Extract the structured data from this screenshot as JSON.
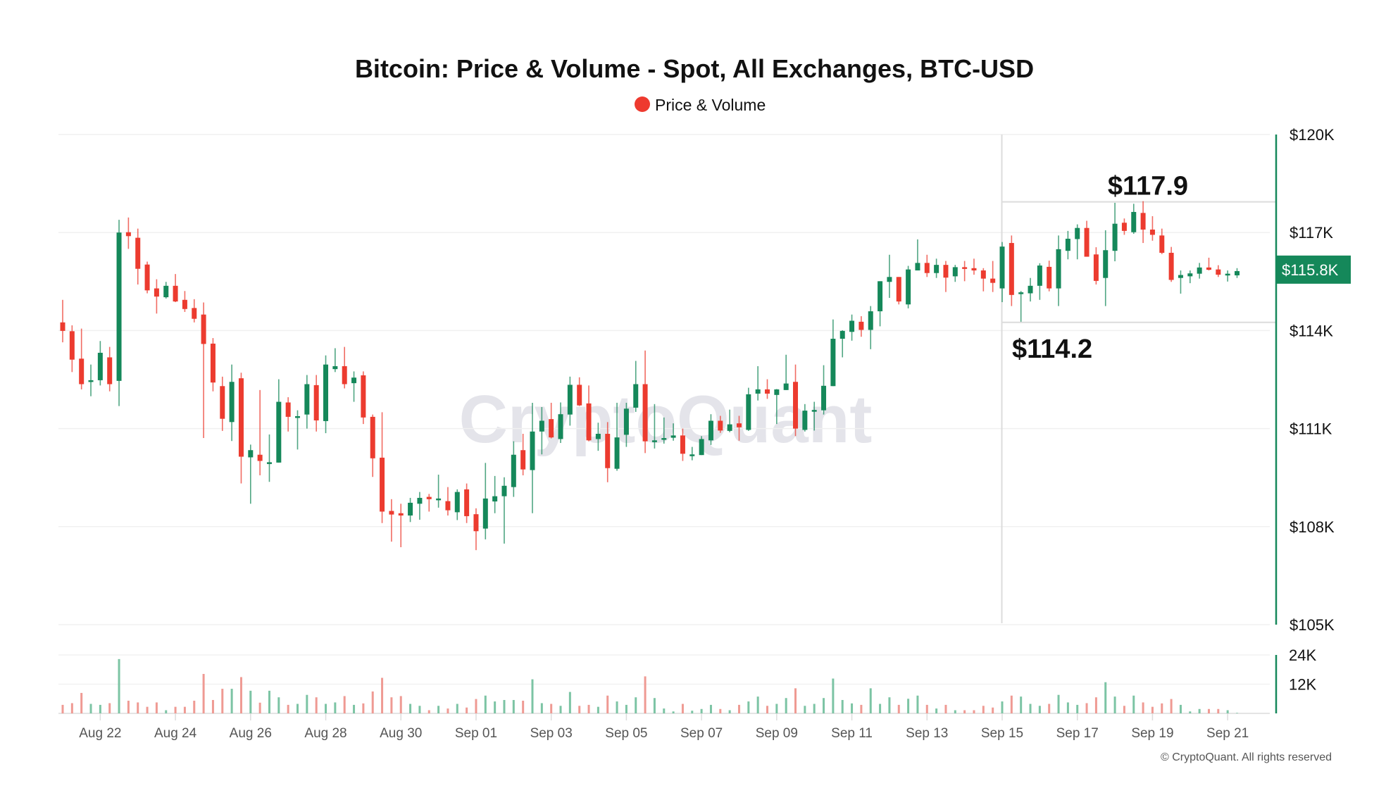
{
  "chart_data": {
    "type": "candlestick",
    "title": "Bitcoin: Price & Volume - Spot, All Exchanges, BTC-USD",
    "legend": [
      {
        "name": "Price & Volume",
        "color": "#ee3a2f"
      }
    ],
    "legend_position": "top-center",
    "colors": {
      "up": "#15885a",
      "down": "#ec3b2f",
      "up_volume": "#7cc4a4",
      "down_volume": "#ef9a93",
      "axis": "#15885a"
    },
    "price_axis": {
      "ylim": [
        105,
        120
      ],
      "ticks": [
        120,
        117,
        114,
        111,
        108,
        105
      ],
      "tick_labels": [
        "$120K",
        "$117K",
        "$114K",
        "$111K",
        "$108K",
        "$105K"
      ],
      "position": "right",
      "grid": true
    },
    "volume_axis": {
      "ylim": [
        0,
        24
      ],
      "ticks": [
        24,
        12
      ],
      "tick_labels": [
        "24K",
        "12K"
      ],
      "position": "right",
      "grid": true
    },
    "x_tick_labels": [
      "Aug 22",
      "Aug 24",
      "Aug 26",
      "Aug 28",
      "Aug 30",
      "Sep 01",
      "Sep 03",
      "Sep 05",
      "Sep 07",
      "Sep 09",
      "Sep 11",
      "Sep 13",
      "Sep 15",
      "Sep 17",
      "Sep 19",
      "Sep 21"
    ],
    "ohlc_fields": [
      "open",
      "high",
      "low",
      "close"
    ],
    "candles": [
      [
        114.25,
        114.94,
        113.64,
        113.99
      ],
      [
        113.98,
        114.16,
        112.73,
        113.11
      ],
      [
        113.14,
        114.06,
        112.2,
        112.36
      ],
      [
        112.45,
        112.96,
        111.99,
        112.48
      ],
      [
        112.48,
        113.68,
        112.32,
        113.32
      ],
      [
        113.18,
        113.5,
        112.14,
        112.36
      ],
      [
        112.46,
        117.39,
        111.69,
        117.0
      ],
      [
        117.01,
        117.46,
        116.5,
        116.89
      ],
      [
        116.84,
        117.12,
        115.41,
        115.89
      ],
      [
        116.02,
        116.11,
        115.14,
        115.23
      ],
      [
        115.29,
        115.57,
        114.52,
        115.04
      ],
      [
        115.02,
        115.49,
        114.98,
        115.37
      ],
      [
        115.37,
        115.73,
        114.87,
        114.89
      ],
      [
        114.94,
        115.21,
        114.57,
        114.66
      ],
      [
        114.69,
        114.96,
        114.25,
        114.36
      ],
      [
        114.49,
        114.86,
        110.71,
        113.59
      ],
      [
        113.6,
        113.77,
        112.14,
        112.41
      ],
      [
        112.3,
        112.59,
        110.93,
        111.3
      ],
      [
        111.2,
        112.96,
        110.62,
        112.43
      ],
      [
        112.54,
        112.71,
        109.32,
        110.14
      ],
      [
        110.12,
        110.51,
        108.7,
        110.34
      ],
      [
        110.2,
        112.18,
        109.57,
        110.01
      ],
      [
        109.94,
        110.82,
        109.37,
        109.97
      ],
      [
        109.96,
        112.51,
        109.96,
        111.82
      ],
      [
        111.8,
        111.96,
        110.91,
        111.36
      ],
      [
        111.36,
        111.56,
        110.36,
        111.38
      ],
      [
        111.43,
        112.64,
        111.0,
        112.36
      ],
      [
        112.33,
        112.64,
        110.91,
        111.25
      ],
      [
        111.23,
        113.24,
        110.86,
        112.96
      ],
      [
        112.82,
        113.46,
        112.73,
        112.91
      ],
      [
        112.91,
        113.5,
        112.23,
        112.36
      ],
      [
        112.39,
        112.75,
        111.82,
        112.56
      ],
      [
        112.63,
        112.75,
        111.14,
        111.34
      ],
      [
        111.36,
        111.43,
        109.52,
        110.09
      ],
      [
        110.11,
        111.5,
        108.11,
        108.46
      ],
      [
        108.48,
        108.84,
        107.54,
        108.37
      ],
      [
        108.41,
        108.7,
        107.37,
        108.34
      ],
      [
        108.34,
        108.88,
        108.14,
        108.73
      ],
      [
        108.7,
        109.06,
        108.21,
        108.88
      ],
      [
        108.91,
        109.0,
        108.46,
        108.84
      ],
      [
        108.83,
        109.59,
        108.58,
        108.86
      ],
      [
        108.78,
        109.21,
        108.34,
        108.5
      ],
      [
        108.44,
        109.14,
        108.2,
        109.06
      ],
      [
        109.14,
        109.32,
        108.11,
        108.32
      ],
      [
        108.38,
        108.56,
        107.28,
        107.86
      ],
      [
        107.94,
        109.95,
        107.61,
        108.86
      ],
      [
        108.77,
        109.55,
        108.41,
        108.93
      ],
      [
        108.93,
        109.51,
        107.48,
        109.25
      ],
      [
        109.21,
        110.61,
        108.91,
        110.2
      ],
      [
        110.34,
        110.84,
        109.57,
        109.75
      ],
      [
        109.73,
        111.79,
        108.41,
        110.91
      ],
      [
        110.91,
        111.66,
        110.21,
        111.24
      ],
      [
        111.29,
        111.79,
        110.7,
        110.73
      ],
      [
        110.68,
        111.8,
        110.56,
        111.44
      ],
      [
        111.43,
        112.59,
        111.09,
        112.34
      ],
      [
        112.34,
        112.57,
        111.69,
        111.71
      ],
      [
        111.77,
        112.32,
        110.61,
        110.64
      ],
      [
        110.68,
        111.18,
        110.32,
        110.84
      ],
      [
        110.84,
        111.2,
        109.36,
        109.79
      ],
      [
        109.77,
        111.79,
        109.71,
        110.73
      ],
      [
        110.81,
        111.79,
        110.44,
        111.61
      ],
      [
        111.64,
        113.07,
        111.51,
        112.36
      ],
      [
        112.36,
        113.39,
        110.25,
        110.61
      ],
      [
        110.61,
        111.75,
        110.39,
        110.64
      ],
      [
        110.66,
        111.34,
        110.54,
        110.71
      ],
      [
        110.72,
        111.16,
        110.63,
        110.79
      ],
      [
        110.79,
        111.0,
        110.01,
        110.23
      ],
      [
        110.18,
        110.44,
        110.03,
        110.21
      ],
      [
        110.19,
        110.77,
        110.19,
        110.68
      ],
      [
        110.64,
        111.44,
        110.5,
        111.24
      ],
      [
        111.24,
        111.39,
        110.87,
        110.94
      ],
      [
        110.93,
        111.58,
        110.89,
        111.13
      ],
      [
        111.16,
        111.39,
        110.63,
        111.04
      ],
      [
        110.96,
        112.25,
        110.93,
        112.05
      ],
      [
        112.07,
        112.91,
        111.86,
        112.2
      ],
      [
        112.2,
        112.51,
        111.91,
        112.07
      ],
      [
        112.03,
        112.21,
        111.14,
        112.2
      ],
      [
        112.18,
        113.26,
        112.18,
        112.38
      ],
      [
        112.43,
        112.96,
        110.77,
        111.0
      ],
      [
        110.96,
        111.75,
        110.91,
        111.55
      ],
      [
        111.53,
        111.82,
        110.94,
        111.57
      ],
      [
        111.56,
        112.94,
        111.43,
        112.31
      ],
      [
        112.3,
        114.34,
        112.3,
        113.75
      ],
      [
        113.75,
        114.01,
        113.18,
        113.99
      ],
      [
        113.96,
        114.49,
        113.69,
        114.3
      ],
      [
        114.27,
        114.44,
        113.81,
        114.02
      ],
      [
        114.02,
        114.75,
        113.43,
        114.59
      ],
      [
        114.59,
        115.51,
        114.13,
        115.51
      ],
      [
        115.49,
        116.32,
        115.0,
        115.64
      ],
      [
        115.64,
        115.64,
        114.8,
        114.89
      ],
      [
        114.8,
        115.98,
        114.68,
        115.87
      ],
      [
        115.84,
        116.79,
        115.84,
        116.07
      ],
      [
        116.07,
        116.32,
        115.64,
        115.76
      ],
      [
        115.76,
        116.2,
        115.61,
        116.01
      ],
      [
        116.01,
        116.13,
        115.18,
        115.62
      ],
      [
        115.66,
        116.01,
        115.49,
        115.94
      ],
      [
        115.94,
        116.13,
        115.51,
        115.91
      ],
      [
        115.91,
        116.2,
        115.71,
        115.84
      ],
      [
        115.84,
        115.91,
        115.2,
        115.59
      ],
      [
        115.59,
        116.13,
        115.18,
        115.46
      ],
      [
        115.29,
        116.71,
        114.87,
        116.57
      ],
      [
        116.68,
        116.91,
        114.75,
        115.09
      ],
      [
        115.14,
        115.21,
        114.27,
        115.17
      ],
      [
        115.14,
        115.61,
        114.89,
        115.37
      ],
      [
        115.37,
        116.06,
        114.94,
        115.99
      ],
      [
        115.95,
        116.14,
        115.2,
        115.29
      ],
      [
        115.29,
        116.91,
        114.75,
        116.49
      ],
      [
        116.44,
        117.05,
        116.18,
        116.81
      ],
      [
        116.8,
        117.25,
        116.18,
        117.14
      ],
      [
        117.14,
        117.36,
        116.26,
        116.26
      ],
      [
        116.33,
        116.55,
        115.41,
        115.52
      ],
      [
        115.61,
        117.07,
        114.75,
        116.46
      ],
      [
        116.44,
        117.91,
        116.12,
        117.27
      ],
      [
        117.3,
        117.43,
        116.93,
        117.05
      ],
      [
        117.01,
        117.88,
        116.96,
        117.63
      ],
      [
        117.6,
        117.96,
        116.68,
        117.09
      ],
      [
        117.09,
        117.5,
        116.75,
        116.93
      ],
      [
        116.91,
        117.12,
        116.34,
        116.38
      ],
      [
        116.38,
        116.56,
        115.49,
        115.55
      ],
      [
        115.61,
        115.84,
        115.13,
        115.7
      ],
      [
        115.66,
        115.84,
        115.45,
        115.75
      ],
      [
        115.74,
        116.07,
        115.59,
        115.93
      ],
      [
        115.93,
        116.23,
        115.84,
        115.86
      ],
      [
        115.87,
        116.0,
        115.64,
        115.71
      ],
      [
        115.72,
        115.84,
        115.5,
        115.74
      ],
      [
        115.69,
        115.91,
        115.61,
        115.82
      ]
    ],
    "volumes": [
      3.5,
      4.2,
      8.4,
      3.9,
      3.5,
      4.2,
      22.3,
      5.2,
      4.5,
      2.7,
      4.5,
      1.3,
      2.7,
      2.7,
      5.2,
      16.2,
      5.5,
      10.1,
      10.1,
      14.9,
      9.3,
      4.4,
      9.3,
      6.6,
      3.5,
      3.9,
      7.6,
      6.6,
      3.9,
      4.5,
      7.1,
      3.5,
      4.1,
      9.0,
      14.6,
      6.6,
      7.1,
      3.9,
      3.1,
      1.3,
      3.1,
      2.0,
      3.9,
      2.4,
      5.9,
      7.3,
      4.9,
      5.5,
      5.5,
      5.2,
      14.0,
      4.2,
      3.9,
      3.1,
      8.8,
      3.1,
      3.5,
      2.7,
      7.3,
      4.9,
      3.5,
      6.6,
      15.2,
      6.3,
      2.0,
      0.8,
      3.9,
      1.1,
      1.8,
      3.5,
      1.8,
      1.3,
      3.5,
      4.9,
      6.9,
      3.1,
      3.9,
      6.3,
      10.3,
      3.1,
      3.9,
      6.3,
      14.3,
      5.5,
      4.1,
      3.5,
      10.3,
      3.9,
      6.6,
      3.5,
      6.0,
      7.3,
      3.5,
      2.0,
      3.5,
      1.3,
      1.3,
      1.3,
      3.1,
      2.4,
      4.9,
      7.3,
      6.9,
      3.9,
      3.1,
      3.9,
      7.6,
      4.5,
      3.5,
      4.2,
      6.6,
      12.8,
      6.9,
      3.1,
      7.3,
      4.5,
      2.7,
      4.1,
      5.9,
      3.5,
      0.8,
      1.8,
      1.8,
      1.8,
      1.3,
      0.2
    ],
    "current_price": {
      "value": 115.8,
      "label": "$115.8K"
    },
    "annotations": [
      {
        "label": "$117.9",
        "value": 117.94
      },
      {
        "label": "$114.2",
        "value": 114.25
      }
    ]
  },
  "watermark": "CryptoQuant",
  "copyright": "© CryptoQuant. All rights reserved"
}
